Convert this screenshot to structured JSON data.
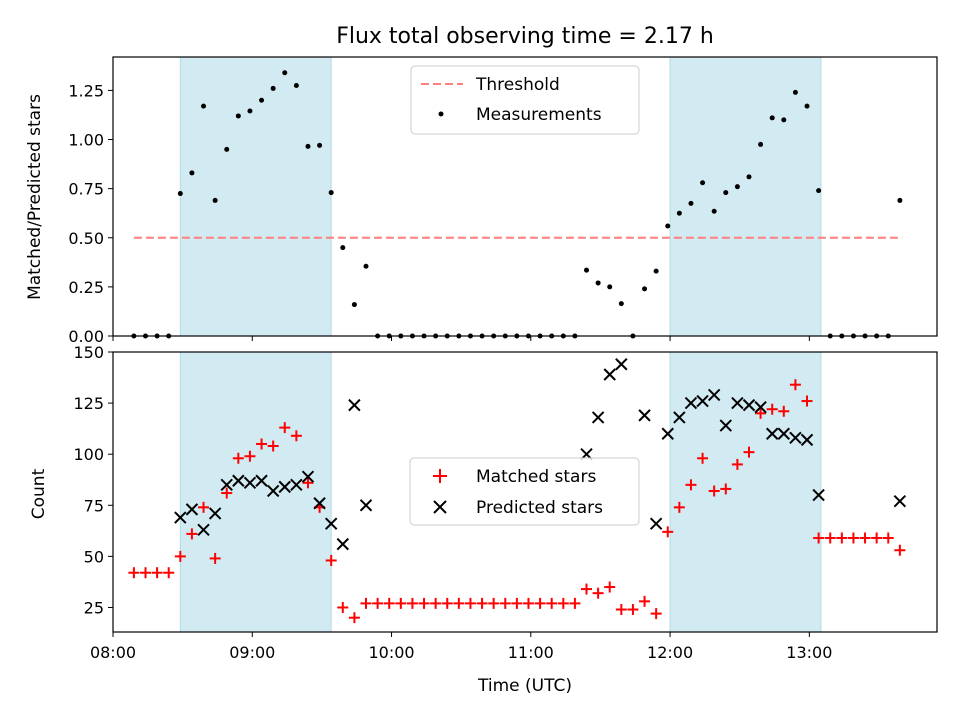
{
  "chart_data": [
    {
      "type": "scatter",
      "title": "Flux total observing time = 2.17 h",
      "ylabel": "Matched/Predicted stars",
      "xlabel": "",
      "xlim": [
        "08:00",
        "13:55"
      ],
      "ylim": [
        0,
        1.42
      ],
      "yticks": [
        "0.00",
        "0.25",
        "0.50",
        "0.75",
        "1.00",
        "1.25"
      ],
      "legend_position": "top-center",
      "threshold": {
        "name": "Threshold",
        "value": 0.5,
        "x_start": "08:09",
        "x_end": "13:40",
        "color": "#ff7f7f"
      },
      "observing_windows": [
        [
          "08:29",
          "09:34"
        ],
        [
          "12:00",
          "13:05"
        ]
      ],
      "window_color": "#add8e6",
      "series": [
        {
          "name": "Measurements",
          "color": "#000000",
          "x": [
            "08:09",
            "08:14",
            "08:19",
            "08:24",
            "08:29",
            "08:34",
            "08:39",
            "08:44",
            "08:49",
            "08:54",
            "08:59",
            "09:04",
            "09:09",
            "09:14",
            "09:19",
            "09:24",
            "09:29",
            "09:34",
            "09:39",
            "09:44",
            "09:49",
            "09:54",
            "09:59",
            "10:04",
            "10:09",
            "10:14",
            "10:19",
            "10:24",
            "10:29",
            "10:34",
            "10:39",
            "10:44",
            "10:49",
            "10:54",
            "10:59",
            "11:04",
            "11:09",
            "11:14",
            "11:19",
            "11:24",
            "11:29",
            "11:34",
            "11:39",
            "11:44",
            "11:49",
            "11:54",
            "11:59",
            "12:04",
            "12:09",
            "12:14",
            "12:19",
            "12:24",
            "12:29",
            "12:34",
            "12:39",
            "12:44",
            "12:49",
            "12:54",
            "12:59",
            "13:04",
            "13:09",
            "13:14",
            "13:19",
            "13:24",
            "13:29",
            "13:34",
            "13:39"
          ],
          "y": [
            0,
            0,
            0,
            0,
            0.725,
            0.83,
            1.17,
            0.69,
            0.95,
            1.12,
            1.145,
            1.2,
            1.26,
            1.34,
            1.275,
            0.965,
            0.97,
            0.73,
            0.45,
            0.16,
            0.355,
            0,
            0,
            0,
            0,
            0,
            0,
            0,
            0,
            0,
            0,
            0,
            0,
            0,
            0,
            0,
            0,
            0,
            0,
            0.335,
            0.27,
            0.25,
            0.165,
            0,
            0.24,
            0.33,
            0.56,
            0.625,
            0.675,
            0.78,
            0.635,
            0.73,
            0.76,
            0.81,
            0.975,
            1.11,
            1.1,
            1.24,
            1.17,
            0.74,
            0,
            0,
            0,
            0,
            0,
            0,
            0.69
          ]
        }
      ]
    },
    {
      "type": "scatter",
      "title": "",
      "ylabel": "Count",
      "xlabel": "Time (UTC)",
      "xlim": [
        "08:00",
        "13:55"
      ],
      "ylim": [
        13,
        150
      ],
      "yticks": [
        "25",
        "50",
        "75",
        "100",
        "125",
        "150"
      ],
      "xticks": [
        "08:00",
        "09:00",
        "10:00",
        "11:00",
        "12:00",
        "13:00"
      ],
      "legend_position": "center",
      "observing_windows": [
        [
          "08:29",
          "09:34"
        ],
        [
          "12:00",
          "13:05"
        ]
      ],
      "window_color": "#add8e6",
      "series": [
        {
          "name": "Matched stars",
          "color": "#ff0000",
          "marker": "+",
          "x": [
            "08:09",
            "08:14",
            "08:19",
            "08:24",
            "08:29",
            "08:34",
            "08:39",
            "08:44",
            "08:49",
            "08:54",
            "08:59",
            "09:04",
            "09:09",
            "09:14",
            "09:19",
            "09:24",
            "09:29",
            "09:34",
            "09:39",
            "09:44",
            "09:49",
            "09:54",
            "09:59",
            "10:04",
            "10:09",
            "10:14",
            "10:19",
            "10:24",
            "10:29",
            "10:34",
            "10:39",
            "10:44",
            "10:49",
            "10:54",
            "10:59",
            "11:04",
            "11:09",
            "11:14",
            "11:19",
            "11:24",
            "11:29",
            "11:34",
            "11:39",
            "11:44",
            "11:49",
            "11:54",
            "11:59",
            "12:04",
            "12:09",
            "12:14",
            "12:19",
            "12:24",
            "12:29",
            "12:34",
            "12:39",
            "12:44",
            "12:49",
            "12:54",
            "12:59",
            "13:04",
            "13:09",
            "13:14",
            "13:19",
            "13:24",
            "13:29",
            "13:34",
            "13:39"
          ],
          "y": [
            42,
            42,
            42,
            42,
            50,
            61,
            74,
            49,
            81,
            98,
            99,
            105,
            104,
            113,
            109,
            86,
            74,
            48,
            25,
            20,
            27,
            27,
            27,
            27,
            27,
            27,
            27,
            27,
            27,
            27,
            27,
            27,
            27,
            27,
            27,
            27,
            27,
            27,
            27,
            34,
            32,
            35,
            24,
            24,
            28,
            22,
            62,
            74,
            85,
            98,
            82,
            83,
            95,
            101,
            120,
            122,
            121,
            134,
            126,
            59,
            59,
            59,
            59,
            59,
            59,
            59,
            53
          ]
        },
        {
          "name": "Predicted stars",
          "color": "#000000",
          "marker": "x",
          "x": [
            "08:29",
            "08:34",
            "08:39",
            "08:44",
            "08:49",
            "08:54",
            "08:59",
            "09:04",
            "09:09",
            "09:14",
            "09:19",
            "09:24",
            "09:29",
            "09:34",
            "09:39",
            "09:44",
            "09:49",
            "11:24",
            "11:29",
            "11:34",
            "11:39",
            "11:49",
            "11:54",
            "11:59",
            "12:04",
            "12:09",
            "12:14",
            "12:19",
            "12:24",
            "12:29",
            "12:34",
            "12:39",
            "12:44",
            "12:49",
            "12:54",
            "12:59",
            "13:04",
            "13:39"
          ],
          "y": [
            69,
            73,
            63,
            71,
            85,
            87,
            86,
            87,
            82,
            84,
            85,
            89,
            76,
            66,
            56,
            124,
            75,
            100,
            118,
            139,
            144,
            119,
            66,
            110,
            118,
            125,
            126,
            129,
            114,
            125,
            124,
            123,
            110,
            110,
            108,
            107,
            80,
            77
          ]
        }
      ]
    }
  ]
}
